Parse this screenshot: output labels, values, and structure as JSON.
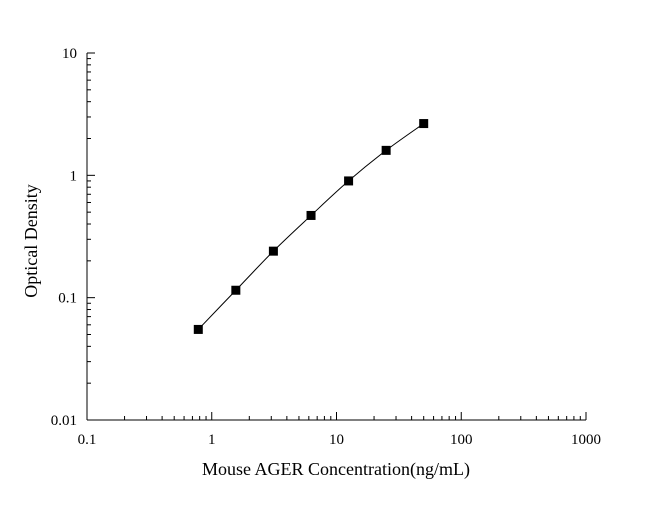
{
  "chart_data": {
    "type": "scatter",
    "title": "",
    "xlabel": "Mouse AGER Concentration(ng/mL)",
    "ylabel": "Optical Density",
    "x_scale": "log",
    "y_scale": "log",
    "xlim": [
      0.1,
      1000
    ],
    "ylim": [
      0.01,
      10
    ],
    "x_ticks": [
      0.1,
      1,
      10,
      100,
      1000
    ],
    "x_tick_labels": [
      "0.1",
      "1",
      "10",
      "100",
      "1000"
    ],
    "y_ticks": [
      0.01,
      0.1,
      1,
      10
    ],
    "y_tick_labels": [
      "0.01",
      "0.1",
      "1",
      "10"
    ],
    "grid": false,
    "marker": "square",
    "series": [
      {
        "x": [
          0.78,
          1.56,
          3.12,
          6.25,
          12.5,
          25,
          50
        ],
        "y": [
          0.055,
          0.115,
          0.24,
          0.47,
          0.9,
          1.6,
          2.65
        ],
        "fit_curve": true
      }
    ],
    "colors": {
      "marker": "#000000",
      "line": "#000000",
      "axis": "#000000"
    }
  }
}
